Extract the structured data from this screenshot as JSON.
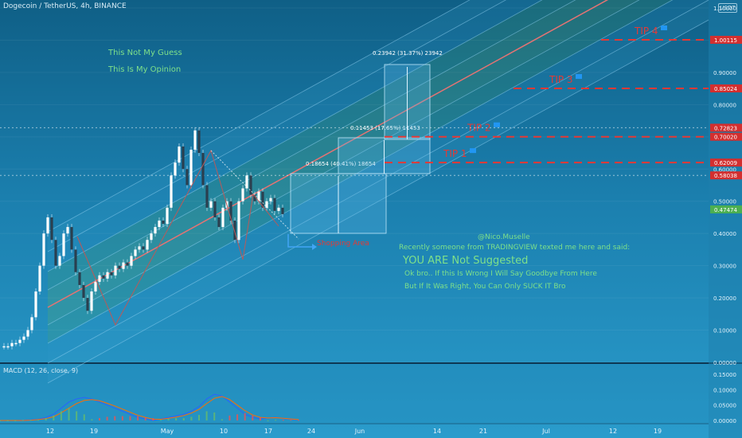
{
  "header": {
    "title": "Dogecoin / TetherUS, 4h, BINANCE",
    "badge": "USDT"
  },
  "macd_title": "MACD (12, 26, close, 9)",
  "notes": {
    "guess": "This Not My Guess",
    "opinion": "This Is My Opinion",
    "author": "@Nico.Muselle",
    "line1": "Recently someone from TRADINGVIEW texted me here and said:",
    "line2": "YOU ARE Not Suggested",
    "line3": "Ok bro.. If this Is Wrong I Will Say Goodbye From Here",
    "line4": "But If It Was Right, You Can Only SUCK IT Bro",
    "shopping": "Shopping Area"
  },
  "targets": [
    {
      "name": "TIP 1",
      "price": 0.62009
    },
    {
      "name": "TIP 2",
      "price": 0.7002
    },
    {
      "name": "TIP 3",
      "price": 0.85024
    },
    {
      "name": "TIP 4",
      "price": 1.00115
    }
  ],
  "measures": [
    {
      "label": "0.18654 (40.41%) 18654"
    },
    {
      "label": "0.11453 (17.65%) 11453"
    },
    {
      "label": "0.23942 (31.37%) 23942"
    }
  ],
  "chart_data": {
    "type": "line",
    "title": "Dogecoin / TetherUS, 4h, BINANCE",
    "x_ticks": [
      "12",
      "19",
      "May",
      "10",
      "17",
      "24",
      "Jun",
      "14",
      "21",
      "Jul",
      "12",
      "19"
    ],
    "y_ticks": [
      "1.10000",
      "1.00000",
      "0.90000",
      "0.80000",
      "0.70000",
      "0.60000",
      "0.50000",
      "0.40000",
      "0.30000",
      "0.20000",
      "0.10000",
      "0.00000"
    ],
    "ylim": [
      0,
      1.1
    ],
    "price_labels": [
      {
        "value": 1.00115,
        "text": "1.00115",
        "color": "#d32f2f"
      },
      {
        "value": 0.85024,
        "text": "0.85024",
        "color": "#d32f2f"
      },
      {
        "value": 0.72823,
        "text": "0.72823",
        "color": "#d32f2f"
      },
      {
        "value": 0.7002,
        "text": "0.70020",
        "color": "#d32f2f"
      },
      {
        "value": 0.62009,
        "text": "0.62009",
        "color": "#d32f2f"
      },
      {
        "value": 0.58038,
        "text": "0.58038",
        "color": "#d32f2f"
      },
      {
        "value": 0.47474,
        "text": "0.47474",
        "color": "#4caf50"
      }
    ],
    "price": [
      0.05,
      0.05,
      0.05,
      0.06,
      0.06,
      0.07,
      0.08,
      0.1,
      0.14,
      0.22,
      0.3,
      0.4,
      0.45,
      0.38,
      0.3,
      0.33,
      0.4,
      0.42,
      0.35,
      0.28,
      0.24,
      0.2,
      0.16,
      0.22,
      0.25,
      0.27,
      0.26,
      0.28,
      0.27,
      0.3,
      0.29,
      0.31,
      0.3,
      0.33,
      0.35,
      0.36,
      0.35,
      0.38,
      0.4,
      0.42,
      0.44,
      0.43,
      0.48,
      0.58,
      0.62,
      0.67,
      0.6,
      0.55,
      0.66,
      0.72,
      0.65,
      0.55,
      0.48,
      0.5,
      0.45,
      0.42,
      0.48,
      0.5,
      0.44,
      0.38,
      0.5,
      0.54,
      0.58,
      0.52,
      0.5,
      0.53,
      0.48,
      0.5,
      0.51,
      0.47,
      0.48,
      0.46
    ],
    "macd_yticks": [
      "0.15000",
      "0.10000",
      "0.05000",
      "0.00000"
    ],
    "macd_ylim": [
      0,
      0.15
    ],
    "macd_line": [
      0.0,
      0.0,
      0.0,
      0.001,
      0.002,
      0.004,
      0.01,
      0.02,
      0.04,
      0.06,
      0.07,
      0.075,
      0.07,
      0.06,
      0.05,
      0.04,
      0.03,
      0.02,
      0.01,
      0.005,
      0.0,
      0.005,
      0.01,
      0.015,
      0.02,
      0.03,
      0.045,
      0.07,
      0.085,
      0.08,
      0.06,
      0.04,
      0.02,
      0.01,
      0.005,
      0.008,
      0.01,
      0.006,
      0.004,
      0.002
    ],
    "signal_line": [
      0.0,
      0.0,
      0.0,
      0.0,
      0.001,
      0.003,
      0.006,
      0.012,
      0.025,
      0.04,
      0.055,
      0.065,
      0.068,
      0.064,
      0.056,
      0.047,
      0.037,
      0.027,
      0.017,
      0.01,
      0.004,
      0.004,
      0.007,
      0.011,
      0.016,
      0.024,
      0.036,
      0.055,
      0.072,
      0.078,
      0.068,
      0.05,
      0.032,
      0.018,
      0.01,
      0.008,
      0.009,
      0.007,
      0.005,
      0.003
    ]
  }
}
